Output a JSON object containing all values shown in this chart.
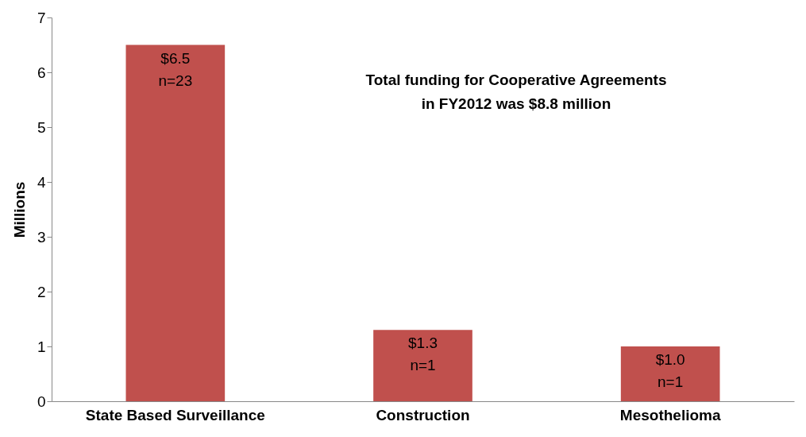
{
  "chart_data": {
    "type": "bar",
    "ylabel": "Millions",
    "categories": [
      "State Based Surveillance",
      "Construction",
      "Mesothelioma"
    ],
    "values": [
      6.5,
      1.3,
      1.0
    ],
    "color": "#c0504d",
    "value_labels": [
      "$6.5\nn=23",
      "$1.3\nn=1",
      "$1.0\nn=1"
    ],
    "annotations": [
      "Total funding for Cooperative Agreements\nin FY2012 was $8.8 million"
    ],
    "ylim": [
      0,
      7
    ],
    "yticks": [
      0,
      1,
      2,
      3,
      4,
      5,
      6,
      7
    ],
    "grid": false
  }
}
